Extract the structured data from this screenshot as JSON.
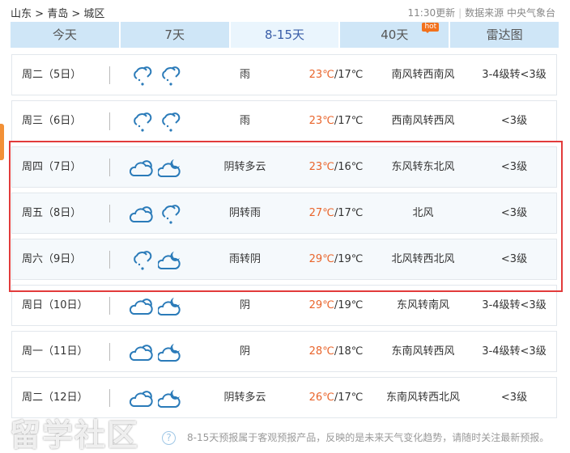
{
  "breadcrumb": {
    "province": "山东",
    "city": "青岛",
    "district": "城区",
    "sep": ">"
  },
  "update": {
    "time": "11:30更新",
    "source": "数据来源 中央气象台"
  },
  "tabs": [
    {
      "label": "今天"
    },
    {
      "label": "7天"
    },
    {
      "label": "8-15天",
      "active": true
    },
    {
      "label": "40天",
      "badge": "hot"
    },
    {
      "label": "雷达图"
    }
  ],
  "colors": {
    "accent": "#3a5ea8",
    "high_temp": "#e9652c",
    "highlight_box": "#e23b3b",
    "tab_bg": "#cfe6f7"
  },
  "rows": [
    {
      "date": "周二（5日）",
      "icons": [
        "cloud-rain-icon",
        "cloud-rain-icon"
      ],
      "weather": "雨",
      "high": "23℃",
      "low": "/17℃",
      "wind": "南风转西南风",
      "level": "3-4级转<3级"
    },
    {
      "date": "周三（6日）",
      "icons": [
        "cloud-rain-icon",
        "cloud-rain-icon"
      ],
      "weather": "雨",
      "high": "23℃",
      "low": "/17℃",
      "wind": "西南风转西风",
      "level": "<3级"
    },
    {
      "date": "周四（7日）",
      "icons": [
        "cloudy-icon",
        "cloud-moon-icon"
      ],
      "weather": "阴转多云",
      "high": "23℃",
      "low": "/16℃",
      "wind": "东风转东北风",
      "level": "<3级"
    },
    {
      "date": "周五（8日）",
      "icons": [
        "cloudy-icon",
        "cloud-rain-icon"
      ],
      "weather": "阴转雨",
      "high": "27℃",
      "low": "/17℃",
      "wind": "北风",
      "level": "<3级"
    },
    {
      "date": "周六（9日）",
      "icons": [
        "cloud-rain-icon",
        "cloud-moon-icon"
      ],
      "weather": "雨转阴",
      "high": "29℃",
      "low": "/19℃",
      "wind": "北风转西北风",
      "level": "<3级"
    },
    {
      "date": "周日（10日）",
      "icons": [
        "cloudy-icon",
        "cloud-moon-icon"
      ],
      "weather": "阴",
      "high": "29℃",
      "low": "/19℃",
      "wind": "东风转南风",
      "level": "3-4级转<3级"
    },
    {
      "date": "周一（11日）",
      "icons": [
        "cloudy-icon",
        "cloud-moon-icon"
      ],
      "weather": "阴",
      "high": "28℃",
      "low": "/18℃",
      "wind": "东南风转西风",
      "level": "3-4级转<3级"
    },
    {
      "date": "周二（12日）",
      "icons": [
        "cloudy-icon",
        "cloud-moon-icon"
      ],
      "weather": "阴转多云",
      "high": "26℃",
      "low": "/17℃",
      "wind": "东南风转西北风",
      "level": "<3级"
    }
  ],
  "note": {
    "icon": "?",
    "text": "8-15天预报属于客观预报产品，反映的是未来天气变化趋势，请随时关注最新预报。"
  },
  "watermark": "留学社区"
}
